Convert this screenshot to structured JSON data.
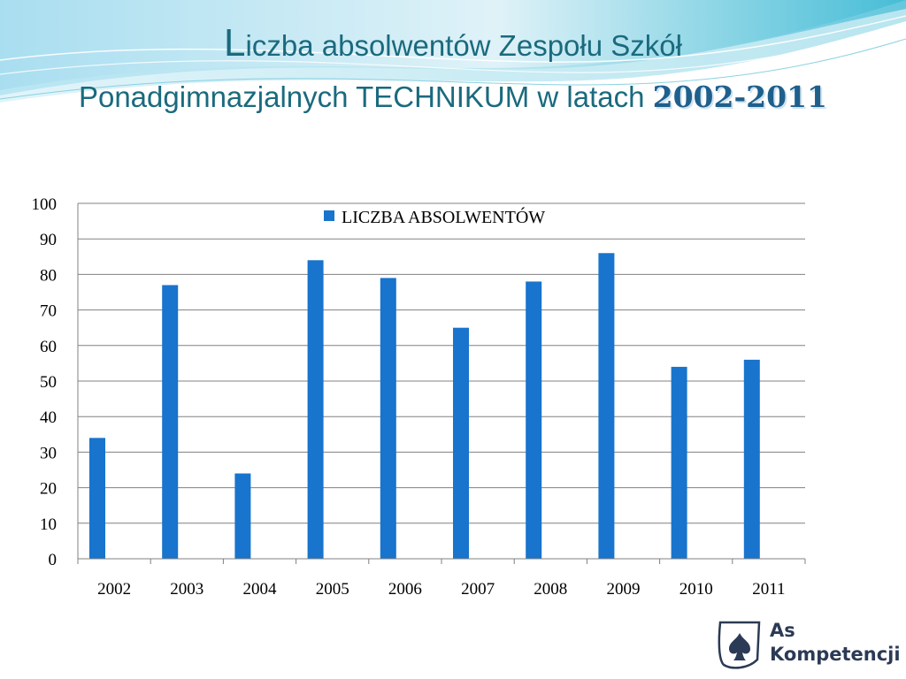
{
  "title": {
    "first_letter": "L",
    "line1_rest": "iczba absolwentów Zespołu Szkół",
    "line2": "Ponadgimnazjalnych TECHNIKUM w latach ",
    "years": "2002-2011"
  },
  "colors": {
    "bar": "#1874cd",
    "title": "#1a6a7e",
    "years": "#1f5f8c",
    "grid": "#808080",
    "banner_light": "#e4f4f8",
    "banner_mid": "#a6dbe9",
    "banner_dark": "#3bb8d3"
  },
  "chart_data": {
    "type": "bar",
    "categories": [
      "2002",
      "2003",
      "2004",
      "2005",
      "2006",
      "2007",
      "2008",
      "2009",
      "2010",
      "2011"
    ],
    "series": [
      {
        "name": "LICZBA ABSOLWENTÓW",
        "values": [
          34,
          77,
          24,
          84,
          79,
          65,
          78,
          86,
          54,
          56
        ]
      }
    ],
    "yticks": [
      "0",
      "10",
      "20",
      "30",
      "40",
      "50",
      "60",
      "70",
      "80",
      "90",
      "100"
    ],
    "ylim": [
      0,
      100
    ],
    "grid": true,
    "legend_position": "top-right"
  },
  "logo": {
    "line1": "As",
    "line2": "Kompetencji"
  }
}
